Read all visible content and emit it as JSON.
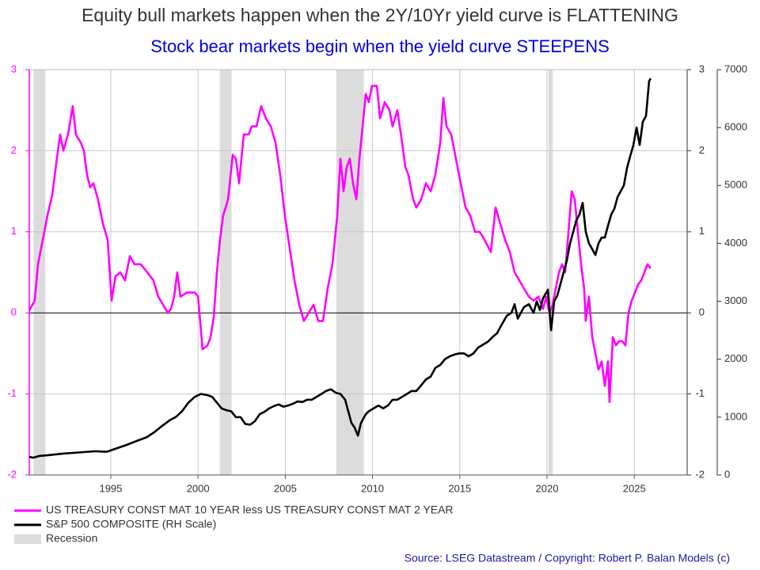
{
  "chart_data": {
    "type": "line",
    "title": "Equity bull markets happen when the 2Y/10Yr yield curve is FLATTENING",
    "subtitle": "Stock bear markets begin when the yield curve STEEPENS",
    "source": "Source: LSEG Datastream / Copyright: Robert P. Balan Models (c)",
    "xlim": [
      1990.33,
      2028.03
    ],
    "xticks": [
      1995,
      2000,
      2005,
      2010,
      2015,
      2020,
      2025
    ],
    "ylim": [
      -2,
      3
    ],
    "yticks": [
      -2,
      -1,
      0,
      1,
      2,
      3
    ],
    "y2lim": [
      0,
      7000
    ],
    "y2ticks": [
      0,
      1000,
      2000,
      3000,
      4000,
      5000,
      6000,
      7000
    ],
    "grid": true,
    "legend": "bottom-left",
    "shading": {
      "name": "Recession",
      "color": "#dcdcdc",
      "spans": [
        [
          1990.58,
          1991.25
        ],
        [
          2001.25,
          2001.92
        ],
        [
          2007.92,
          2009.5
        ],
        [
          2020.08,
          2020.33
        ]
      ]
    },
    "series": [
      {
        "name": "US TREASURY CONST MAT 10 YEAR less US TREASURY CONST MAT 2 YEAR",
        "color": "#ff00ff",
        "axis": "y",
        "x": [
          1990.33,
          1990.64,
          1990.83,
          1991.01,
          1991.19,
          1991.37,
          1991.64,
          1991.91,
          1992.1,
          1992.28,
          1992.55,
          1992.82,
          1993.0,
          1993.28,
          1993.46,
          1993.64,
          1993.82,
          1994.0,
          1994.27,
          1994.55,
          1994.82,
          1995.05,
          1995.27,
          1995.54,
          1995.82,
          1996.09,
          1996.36,
          1996.72,
          1997.09,
          1997.45,
          1997.72,
          1998.0,
          1998.27,
          1998.45,
          1998.63,
          1998.81,
          1998.99,
          1999.36,
          1999.81,
          2000.0,
          2000.26,
          2000.54,
          2000.72,
          2000.9,
          2001.08,
          2001.26,
          2001.44,
          2001.72,
          2001.99,
          2002.17,
          2002.35,
          2002.62,
          2002.9,
          2003.08,
          2003.35,
          2003.62,
          2003.89,
          2004.17,
          2004.44,
          2004.71,
          2004.98,
          2005.25,
          2005.53,
          2005.8,
          2006.07,
          2006.34,
          2006.62,
          2006.89,
          2007.16,
          2007.43,
          2007.7,
          2007.98,
          2008.16,
          2008.34,
          2008.52,
          2008.7,
          2008.88,
          2009.07,
          2009.25,
          2009.43,
          2009.61,
          2009.79,
          2009.97,
          2010.25,
          2010.43,
          2010.7,
          2010.97,
          2011.15,
          2011.42,
          2011.7,
          2011.88,
          2012.06,
          2012.33,
          2012.51,
          2012.79,
          2013.06,
          2013.33,
          2013.6,
          2013.88,
          2014.06,
          2014.24,
          2014.51,
          2014.78,
          2015.05,
          2015.33,
          2015.6,
          2015.87,
          2016.14,
          2016.42,
          2016.78,
          2017.05,
          2017.32,
          2017.6,
          2017.87,
          2018.14,
          2018.41,
          2018.68,
          2018.96,
          2019.23,
          2019.5,
          2019.77,
          2019.95,
          2020.14,
          2020.32,
          2020.5,
          2020.68,
          2020.86,
          2021.04,
          2021.23,
          2021.41,
          2021.59,
          2021.77,
          2021.95,
          2022.13,
          2022.22,
          2022.4,
          2022.59,
          2022.77,
          2022.95,
          2023.13,
          2023.31,
          2023.49,
          2023.58,
          2023.77,
          2023.95,
          2024.13,
          2024.31,
          2024.49,
          2024.67,
          2024.85,
          2025.04,
          2025.22,
          2025.4,
          2025.58,
          2025.76,
          2025.94
        ],
        "values": [
          0.03,
          0.15,
          0.6,
          0.8,
          1.0,
          1.2,
          1.45,
          1.9,
          2.2,
          2.0,
          2.2,
          2.55,
          2.2,
          2.1,
          2.0,
          1.7,
          1.55,
          1.6,
          1.4,
          1.1,
          0.9,
          0.15,
          0.45,
          0.5,
          0.4,
          0.7,
          0.6,
          0.6,
          0.5,
          0.4,
          0.2,
          0.1,
          0.0,
          0.05,
          0.2,
          0.5,
          0.2,
          0.25,
          0.25,
          0.2,
          -0.45,
          -0.4,
          -0.3,
          -0.05,
          0.5,
          0.9,
          1.2,
          1.4,
          1.95,
          1.9,
          1.6,
          2.2,
          2.2,
          2.3,
          2.3,
          2.55,
          2.4,
          2.3,
          2.1,
          1.7,
          1.2,
          0.8,
          0.4,
          0.1,
          -0.1,
          0.0,
          0.1,
          -0.1,
          -0.1,
          0.3,
          0.6,
          1.2,
          1.9,
          1.5,
          1.8,
          1.9,
          1.6,
          1.4,
          1.9,
          2.3,
          2.7,
          2.6,
          2.8,
          2.8,
          2.4,
          2.6,
          2.5,
          2.3,
          2.5,
          2.1,
          1.8,
          1.7,
          1.4,
          1.3,
          1.4,
          1.6,
          1.5,
          1.7,
          2.1,
          2.65,
          2.3,
          2.2,
          1.9,
          1.6,
          1.3,
          1.2,
          1.0,
          1.0,
          0.9,
          0.75,
          1.3,
          1.1,
          0.9,
          0.75,
          0.5,
          0.4,
          0.3,
          0.2,
          0.15,
          0.2,
          0.05,
          0.2,
          0.0,
          0.1,
          0.3,
          0.5,
          0.6,
          0.5,
          1.0,
          1.5,
          1.4,
          1.0,
          0.6,
          0.3,
          -0.1,
          0.2,
          -0.3,
          -0.5,
          -0.7,
          -0.6,
          -0.9,
          -0.6,
          -1.1,
          -0.3,
          -0.4,
          -0.35,
          -0.35,
          -0.4,
          0.0,
          0.15,
          0.25,
          0.35,
          0.4,
          0.5,
          0.6,
          0.55
        ]
      },
      {
        "name": "S&P 500 COMPOSITE (RH Scale)",
        "color": "#000000",
        "axis": "y2",
        "x": [
          1990.33,
          1990.55,
          1990.92,
          1991.37,
          1992.28,
          1993.19,
          1994.09,
          1994.77,
          1995.23,
          1995.91,
          1996.59,
          1997.04,
          1997.5,
          1997.95,
          1998.4,
          1998.72,
          1999.08,
          1999.45,
          1999.81,
          2000.17,
          2000.54,
          2000.81,
          2001.08,
          2001.35,
          2001.62,
          2001.9,
          2002.17,
          2002.44,
          2002.71,
          2002.99,
          2003.26,
          2003.53,
          2003.8,
          2004.07,
          2004.35,
          2004.62,
          2004.89,
          2005.16,
          2005.44,
          2005.71,
          2005.98,
          2006.25,
          2006.52,
          2006.8,
          2007.07,
          2007.34,
          2007.61,
          2007.89,
          2008.16,
          2008.43,
          2008.61,
          2008.79,
          2008.97,
          2009.16,
          2009.34,
          2009.61,
          2009.79,
          2010.06,
          2010.34,
          2010.61,
          2010.88,
          2011.15,
          2011.42,
          2011.7,
          2011.97,
          2012.24,
          2012.51,
          2012.79,
          2013.06,
          2013.33,
          2013.6,
          2013.88,
          2014.15,
          2014.42,
          2014.69,
          2014.96,
          2015.24,
          2015.51,
          2015.78,
          2016.05,
          2016.33,
          2016.6,
          2016.87,
          2017.14,
          2017.41,
          2017.69,
          2017.96,
          2018.14,
          2018.32,
          2018.5,
          2018.68,
          2018.96,
          2019.23,
          2019.41,
          2019.59,
          2019.77,
          2020.05,
          2020.23,
          2020.41,
          2020.59,
          2020.77,
          2020.95,
          2021.13,
          2021.32,
          2021.5,
          2021.68,
          2021.86,
          2022.04,
          2022.22,
          2022.4,
          2022.59,
          2022.77,
          2022.95,
          2023.13,
          2023.31,
          2023.49,
          2023.68,
          2023.86,
          2024.04,
          2024.22,
          2024.4,
          2024.58,
          2024.76,
          2024.95,
          2025.13,
          2025.31,
          2025.49,
          2025.67,
          2025.85,
          2025.94
        ],
        "values": [
          314,
          300,
          330,
          340,
          370,
          390,
          410,
          400,
          450,
          520,
          600,
          650,
          740,
          850,
          950,
          1000,
          1100,
          1250,
          1350,
          1400,
          1380,
          1350,
          1250,
          1150,
          1120,
          1100,
          1000,
          1000,
          880,
          870,
          930,
          1050,
          1090,
          1150,
          1190,
          1220,
          1180,
          1200,
          1230,
          1270,
          1260,
          1300,
          1300,
          1350,
          1400,
          1450,
          1480,
          1420,
          1400,
          1300,
          1100,
          900,
          820,
          680,
          900,
          1050,
          1100,
          1150,
          1200,
          1150,
          1200,
          1300,
          1300,
          1350,
          1400,
          1450,
          1450,
          1550,
          1650,
          1700,
          1850,
          1900,
          2000,
          2050,
          2080,
          2100,
          2100,
          2050,
          2100,
          2200,
          2250,
          2300,
          2380,
          2450,
          2600,
          2750,
          2800,
          2950,
          2700,
          2800,
          2900,
          2950,
          2800,
          3000,
          2850,
          3050,
          3200,
          2500,
          3000,
          3100,
          3300,
          3500,
          3700,
          4000,
          4200,
          4400,
          4500,
          4700,
          4200,
          4000,
          3900,
          3800,
          4000,
          4100,
          4100,
          4300,
          4500,
          4600,
          4800,
          4900,
          5000,
          5300,
          5500,
          5700,
          6000,
          5700,
          6100,
          6200,
          6800,
          6850
        ]
      }
    ]
  }
}
